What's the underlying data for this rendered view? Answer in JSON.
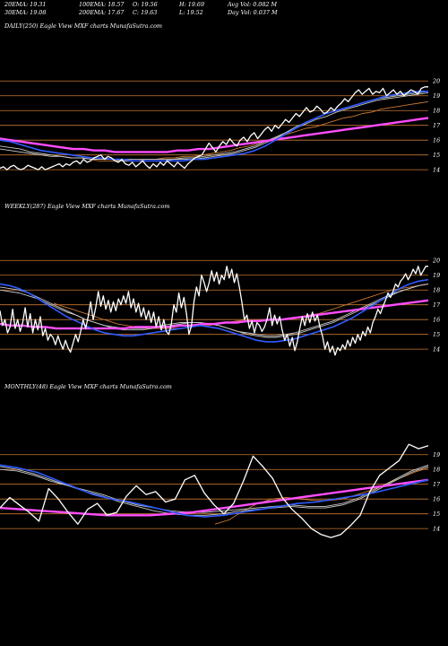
{
  "header": {
    "row1": [
      "20EMA: 19.31",
      "100EMA: 18.57",
      "O: 19.56",
      "H: 19.69",
      "Avg Vol: 0.082  M"
    ],
    "row2": [
      "30EMA: 19.08",
      "200EMA: 17.67",
      "C: 19.63",
      "L: 19.52",
      "Day Vol: 0.037 M"
    ]
  },
  "colors": {
    "background": "#000000",
    "price": "#ffffff",
    "ema_fast": "#2f5bff",
    "ema_slow": "#ff4dff",
    "ema_band": "#c8c8c8",
    "ema_brown": "#c87832",
    "gridline": "#c87832"
  },
  "chart_data": [
    {
      "type": "line",
      "label": "DAILY(250) Eagle  View  MXF charts MunafaSutra.com",
      "y_ticks": [
        20,
        19,
        18,
        17,
        16,
        15,
        14
      ],
      "ylim": [
        13.1,
        20.5
      ],
      "series": [
        {
          "role": "price",
          "values": [
            14.1,
            14.2,
            14.0,
            14.2,
            14.3,
            14.1,
            14.0,
            14.1,
            14.3,
            14.2,
            14.1,
            14.0,
            14.2,
            14.0,
            14.1,
            14.2,
            14.3,
            14.4,
            14.2,
            14.4,
            14.3,
            14.5,
            14.6,
            14.4,
            14.7,
            14.5,
            14.6,
            14.8,
            14.9,
            15.0,
            14.7,
            14.9,
            14.8,
            14.6,
            14.5,
            14.7,
            14.4,
            14.3,
            14.5,
            14.2,
            14.4,
            14.6,
            14.3,
            14.1,
            14.4,
            14.2,
            14.5,
            14.3,
            14.6,
            14.4,
            14.2,
            14.5,
            14.3,
            14.1,
            14.4,
            14.6,
            14.8,
            14.9,
            15.0,
            15.4,
            15.8,
            15.5,
            15.2,
            15.6,
            15.9,
            15.7,
            16.1,
            15.8,
            15.6,
            16.0,
            16.2,
            15.9,
            16.3,
            16.5,
            16.1,
            16.4,
            16.7,
            16.9,
            16.6,
            17.0,
            16.8,
            17.1,
            17.4,
            17.2,
            17.5,
            17.8,
            17.6,
            17.9,
            18.2,
            17.9,
            18.0,
            18.3,
            18.1,
            17.8,
            17.9,
            18.2,
            18.0,
            18.3,
            18.5,
            18.8,
            18.6,
            18.9,
            19.2,
            19.4,
            19.1,
            19.3,
            19.5,
            19.1,
            19.3,
            19.2,
            19.5,
            19.0,
            19.2,
            19.4,
            19.1,
            19.3,
            19.0,
            19.2,
            19.4,
            19.3,
            19.1,
            19.5,
            19.6,
            19.6
          ]
        },
        {
          "role": "ema_fast",
          "values": [
            16.0,
            15.9,
            15.7,
            15.5,
            15.3,
            15.2,
            15.1,
            15.0,
            14.9,
            14.8,
            14.8,
            14.7,
            14.7,
            14.6,
            14.6,
            14.6,
            14.6,
            14.6,
            14.6,
            14.7,
            14.7,
            14.8,
            14.9,
            15.0,
            15.1,
            15.3,
            15.6,
            16.0,
            16.4,
            16.8,
            17.2,
            17.5,
            17.8,
            18.0,
            18.2,
            18.4,
            18.6,
            18.8,
            19.0,
            19.1,
            19.2,
            19.3,
            19.3
          ]
        },
        {
          "role": "ema_band",
          "values": [
            15.6,
            15.5,
            15.4,
            15.2,
            15.1,
            15.0,
            14.9,
            14.8,
            14.8,
            14.7,
            14.7,
            14.7,
            14.6,
            14.6,
            14.6,
            14.6,
            14.6,
            14.7,
            14.7,
            14.7,
            14.8,
            14.9,
            15.0,
            15.1,
            15.3,
            15.5,
            15.8,
            16.1,
            16.5,
            16.9,
            17.2,
            17.5,
            17.8,
            18.0,
            18.2,
            18.4,
            18.6,
            18.8,
            18.9,
            19.0,
            19.1,
            19.2,
            19.3
          ]
        },
        {
          "role": "ema_band",
          "values": [
            15.4,
            15.3,
            15.2,
            15.1,
            15.0,
            14.9,
            14.9,
            14.8,
            14.8,
            14.7,
            14.7,
            14.7,
            14.7,
            14.7,
            14.7,
            14.7,
            14.7,
            14.7,
            14.8,
            14.8,
            14.9,
            15.0,
            15.1,
            15.2,
            15.4,
            15.6,
            15.9,
            16.2,
            16.5,
            16.8,
            17.1,
            17.4,
            17.6,
            17.9,
            18.1,
            18.3,
            18.5,
            18.7,
            18.8,
            18.9,
            19.0,
            19.1,
            19.2
          ]
        },
        {
          "role": "ema_brown",
          "values": [
            14.7,
            14.6,
            14.6,
            14.6,
            14.6,
            14.6,
            14.7,
            14.7,
            14.8,
            14.8,
            14.9,
            14.9,
            15.0,
            15.1,
            15.2,
            15.3,
            15.5,
            15.6,
            15.8,
            16.0,
            16.2,
            16.4,
            16.6,
            16.8,
            16.9,
            17.1,
            17.3,
            17.5,
            17.6,
            17.8,
            17.9,
            18.1,
            18.2,
            18.3,
            18.4,
            18.5,
            18.6
          ]
        },
        {
          "role": "ema_slow",
          "values": [
            16.1,
            16.0,
            15.9,
            15.8,
            15.7,
            15.6,
            15.5,
            15.4,
            15.4,
            15.3,
            15.3,
            15.2,
            15.2,
            15.2,
            15.2,
            15.2,
            15.2,
            15.3,
            15.3,
            15.4,
            15.4,
            15.5,
            15.6,
            15.7,
            15.8,
            15.9,
            16.0,
            16.1,
            16.2,
            16.3,
            16.4,
            16.5,
            16.6,
            16.7,
            16.8,
            16.9,
            17.0,
            17.1,
            17.2,
            17.3,
            17.4,
            17.5
          ]
        }
      ]
    },
    {
      "type": "line",
      "label": "WEEKLY(287) Eagle  View  MXF charts MunafaSutra.com",
      "y_ticks": [
        20,
        19,
        18,
        17,
        16,
        15,
        14
      ],
      "ylim": [
        13.1,
        20.5
      ],
      "series": [
        {
          "role": "price",
          "values": [
            16.6,
            15.6,
            16.0,
            15.1,
            15.5,
            16.7,
            15.4,
            16.0,
            15.2,
            15.8,
            16.8,
            15.5,
            16.4,
            15.1,
            16.0,
            15.3,
            16.2,
            14.9,
            15.4,
            14.6,
            15.0,
            14.8,
            14.3,
            14.9,
            14.4,
            14.0,
            14.6,
            14.1,
            13.8,
            14.4,
            15.0,
            14.5,
            15.2,
            16.0,
            15.4,
            16.2,
            17.2,
            16.0,
            16.8,
            17.9,
            16.9,
            17.6,
            16.7,
            17.3,
            16.5,
            17.2,
            16.6,
            17.4,
            17.0,
            17.6,
            17.1,
            17.9,
            16.8,
            17.4,
            16.5,
            17.1,
            16.2,
            16.8,
            16.0,
            16.6,
            15.8,
            16.5,
            15.5,
            16.2,
            15.3,
            16.0,
            15.2,
            15.0,
            15.7,
            17.0,
            16.5,
            17.8,
            16.8,
            17.5,
            16.4,
            15.0,
            15.6,
            17.2,
            18.2,
            17.6,
            19.0,
            18.5,
            17.9,
            18.5,
            19.3,
            18.6,
            19.2,
            18.4,
            19.0,
            18.7,
            19.6,
            18.8,
            19.4,
            18.5,
            19.1,
            18.2,
            17.2,
            16.0,
            16.3,
            15.4,
            15.9,
            15.1,
            15.8,
            15.6,
            15.2,
            15.5,
            16.0,
            16.8,
            15.6,
            16.3,
            15.7,
            16.2,
            15.3,
            14.6,
            15.0,
            14.2,
            14.8,
            13.9,
            14.5,
            15.4,
            16.2,
            15.6,
            16.4,
            15.8,
            16.5,
            15.9,
            16.3,
            15.5,
            14.9,
            14.0,
            14.5,
            13.8,
            14.2,
            13.6,
            14.1,
            13.9,
            14.3,
            14.0,
            14.6,
            14.2,
            14.8,
            14.4,
            15.0,
            14.6,
            15.2,
            14.9,
            15.5,
            15.1,
            15.8,
            16.2,
            16.7,
            16.4,
            16.9,
            17.3,
            17.8,
            17.5,
            17.9,
            18.4,
            18.2,
            18.6,
            18.8,
            19.1,
            18.7,
            19.0,
            19.4,
            19.1,
            19.6,
            19.0,
            19.3,
            19.6,
            19.6
          ]
        },
        {
          "role": "ema_fast",
          "values": [
            18.4,
            18.3,
            18.1,
            17.8,
            17.4,
            17.0,
            16.6,
            16.2,
            15.9,
            15.6,
            15.3,
            15.1,
            15.0,
            14.9,
            14.9,
            15.0,
            15.1,
            15.2,
            15.3,
            15.4,
            15.5,
            15.6,
            15.5,
            15.4,
            15.2,
            15.0,
            14.8,
            14.6,
            14.5,
            14.5,
            14.6,
            14.7,
            14.9,
            15.1,
            15.3,
            15.5,
            15.8,
            16.1,
            16.5,
            16.9,
            17.3,
            17.7,
            18.1,
            18.4,
            18.6,
            18.7
          ]
        },
        {
          "role": "ema_band",
          "values": [
            18.2,
            18.1,
            18.0,
            17.8,
            17.5,
            17.2,
            16.9,
            16.6,
            16.3,
            16.0,
            15.8,
            15.6,
            15.4,
            15.3,
            15.3,
            15.3,
            15.4,
            15.5,
            15.6,
            15.7,
            15.8,
            15.8,
            15.7,
            15.6,
            15.4,
            15.2,
            15.0,
            14.9,
            14.8,
            14.8,
            14.9,
            15.0,
            15.2,
            15.4,
            15.6,
            15.8,
            16.1,
            16.4,
            16.7,
            17.0,
            17.3,
            17.6,
            17.9,
            18.1,
            18.3,
            18.4
          ]
        },
        {
          "role": "ema_band",
          "values": [
            18.0,
            17.9,
            17.8,
            17.6,
            17.4,
            17.1,
            16.8,
            16.5,
            16.3,
            16.0,
            15.8,
            15.6,
            15.5,
            15.4,
            15.4,
            15.4,
            15.5,
            15.6,
            15.7,
            15.8,
            15.8,
            15.8,
            15.7,
            15.6,
            15.4,
            15.2,
            15.1,
            15.0,
            14.9,
            14.9,
            15.0,
            15.1,
            15.3,
            15.5,
            15.7,
            15.9,
            16.2,
            16.5,
            16.8,
            17.1,
            17.4,
            17.7,
            17.9,
            18.1,
            18.3,
            18.4
          ]
        },
        {
          "role": "ema_brown",
          "values": [
            17.1,
            16.9,
            16.7,
            16.5,
            16.3,
            16.1,
            15.9,
            15.7,
            15.6,
            15.5,
            15.4,
            15.4,
            15.4,
            15.4,
            15.4,
            15.5,
            15.6,
            15.6,
            15.7,
            15.8,
            15.9,
            16.0,
            16.0,
            16.0,
            16.0,
            16.0,
            16.1,
            16.2,
            16.3,
            16.4,
            16.6,
            16.8,
            17.0,
            17.2,
            17.4,
            17.6,
            17.8,
            18.0,
            18.1,
            18.2,
            18.3,
            18.4
          ]
        },
        {
          "role": "ema_slow",
          "values": [
            15.7,
            15.6,
            15.6,
            15.5,
            15.5,
            15.4,
            15.4,
            15.4,
            15.4,
            15.4,
            15.4,
            15.4,
            15.5,
            15.5,
            15.5,
            15.5,
            15.6,
            15.6,
            15.7,
            15.7,
            15.8,
            15.8,
            15.9,
            15.9,
            16.0,
            16.0,
            16.1,
            16.2,
            16.3,
            16.4,
            16.5,
            16.6,
            16.7,
            16.8,
            16.9,
            17.0,
            17.1,
            17.2,
            17.3
          ]
        }
      ]
    },
    {
      "type": "line",
      "label": "MONTHLY(48) Eagle  View  MXF charts MunafaSutra.com",
      "y_ticks": [
        19,
        18,
        17,
        16,
        15,
        14
      ],
      "ylim": [
        13.1,
        20.5
      ],
      "series": [
        {
          "role": "price",
          "values": [
            15.4,
            16.1,
            15.6,
            15.1,
            14.5,
            16.7,
            16.0,
            15.1,
            14.3,
            15.3,
            15.7,
            14.9,
            15.1,
            16.2,
            16.9,
            16.3,
            16.5,
            15.8,
            16.0,
            17.3,
            17.6,
            16.4,
            15.6,
            15.0,
            15.7,
            17.2,
            18.9,
            18.2,
            17.4,
            16.1,
            15.3,
            14.7,
            14.0,
            13.6,
            13.4,
            13.6,
            14.2,
            14.9,
            16.5,
            17.6,
            18.1,
            18.6,
            19.7,
            19.4,
            19.6
          ]
        },
        {
          "role": "ema_fast",
          "values": [
            18.3,
            18.1,
            17.8,
            17.3,
            16.8,
            16.3,
            16.0,
            15.8,
            15.5,
            15.2,
            14.9,
            14.8,
            14.9,
            15.1,
            15.3,
            15.5,
            15.7,
            15.8,
            16.0,
            16.2,
            16.4,
            16.7,
            17.0,
            17.3
          ]
        },
        {
          "role": "ema_band",
          "values": [
            18.0,
            17.9,
            17.6,
            17.2,
            16.9,
            16.5,
            16.2,
            15.8,
            15.5,
            15.2,
            15.0,
            14.9,
            14.9,
            15.0,
            15.2,
            15.3,
            15.4,
            15.5,
            15.4,
            15.4,
            15.6,
            16.0,
            16.6,
            17.2,
            17.8,
            18.2
          ]
        },
        {
          "role": "ema_band",
          "values": [
            18.2,
            18.0,
            17.7,
            17.3,
            16.9,
            16.6,
            16.3,
            15.9,
            15.6,
            15.4,
            15.2,
            15.1,
            15.1,
            15.2,
            15.3,
            15.4,
            15.5,
            15.6,
            15.5,
            15.5,
            15.7,
            16.1,
            16.7,
            17.3,
            17.9,
            18.3
          ]
        },
        {
          "role": "ema_brown",
          "values": [
            14.3,
            14.6,
            15.2,
            15.7,
            16.0,
            16.1,
            16.0,
            15.9,
            15.9,
            16.0,
            16.3,
            16.6,
            17.0,
            17.4,
            17.8,
            18.1
          ]
        },
        {
          "role": "ema_slow",
          "values": [
            15.4,
            15.3,
            15.2,
            15.1,
            15.0,
            14.9,
            14.9,
            14.9,
            15.0,
            15.1,
            15.3,
            15.5,
            15.7,
            15.9,
            16.1,
            16.3,
            16.5,
            16.7,
            16.9,
            17.1,
            17.3
          ]
        }
      ]
    }
  ]
}
